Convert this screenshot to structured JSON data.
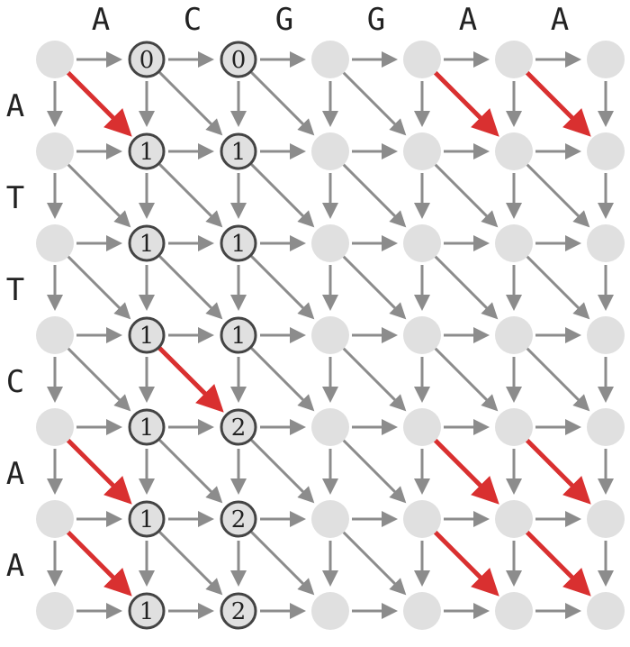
{
  "grid": {
    "top_sequence": [
      "A",
      "C",
      "G",
      "G",
      "A",
      "A"
    ],
    "left_sequence": [
      "A",
      "T",
      "T",
      "C",
      "A",
      "A"
    ],
    "highlighted_nodes": [
      {
        "row": 0,
        "col": 1,
        "label": "0"
      },
      {
        "row": 0,
        "col": 2,
        "label": "0"
      },
      {
        "row": 1,
        "col": 1,
        "label": "1"
      },
      {
        "row": 1,
        "col": 2,
        "label": "1"
      },
      {
        "row": 2,
        "col": 1,
        "label": "1"
      },
      {
        "row": 2,
        "col": 2,
        "label": "1"
      },
      {
        "row": 3,
        "col": 1,
        "label": "1"
      },
      {
        "row": 3,
        "col": 2,
        "label": "1"
      },
      {
        "row": 4,
        "col": 1,
        "label": "1"
      },
      {
        "row": 4,
        "col": 2,
        "label": "2"
      },
      {
        "row": 5,
        "col": 1,
        "label": "1"
      },
      {
        "row": 5,
        "col": 2,
        "label": "2"
      },
      {
        "row": 6,
        "col": 1,
        "label": "1"
      },
      {
        "row": 6,
        "col": 2,
        "label": "2"
      }
    ],
    "match_edges": [
      {
        "from_row": 0,
        "from_col": 0
      },
      {
        "from_row": 0,
        "from_col": 4
      },
      {
        "from_row": 0,
        "from_col": 5
      },
      {
        "from_row": 3,
        "from_col": 1
      },
      {
        "from_row": 4,
        "from_col": 0
      },
      {
        "from_row": 4,
        "from_col": 4
      },
      {
        "from_row": 4,
        "from_col": 5
      },
      {
        "from_row": 5,
        "from_col": 0
      },
      {
        "from_row": 5,
        "from_col": 4
      },
      {
        "from_row": 5,
        "from_col": 5
      }
    ],
    "colors": {
      "node_fill": "#e0e0e0",
      "node_outline": "#444444",
      "edge": "#8c8c8c",
      "match_edge": "#d93030",
      "text": "#222222"
    }
  }
}
